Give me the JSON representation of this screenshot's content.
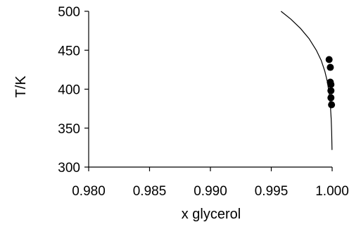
{
  "chart_data": {
    "type": "scatter",
    "title": "",
    "xlabel": "x glycerol",
    "ylabel": "T/K",
    "xlim": [
      0.98,
      1.0
    ],
    "ylim": [
      300,
      500
    ],
    "xticks": [
      "0.980",
      "0.985",
      "0.990",
      "0.995",
      "1.000"
    ],
    "yticks": [
      "300",
      "350",
      "400",
      "450",
      "500"
    ],
    "grid": false,
    "legend": "none",
    "series": [
      {
        "kind": "line",
        "color": "#000000",
        "points": [
          [
            0.9958,
            500
          ],
          [
            0.9966,
            490
          ],
          [
            0.9974,
            478
          ],
          [
            0.9981,
            465
          ],
          [
            0.9987,
            450
          ],
          [
            0.9991,
            437
          ],
          [
            0.9994,
            423
          ],
          [
            0.9996,
            410
          ],
          [
            0.99975,
            395
          ],
          [
            0.99985,
            380
          ],
          [
            0.99992,
            362
          ],
          [
            0.99996,
            345
          ],
          [
            0.99999,
            322
          ]
        ]
      },
      {
        "kind": "scatter",
        "color": "#000000",
        "points": [
          [
            0.99975,
            438
          ],
          [
            0.99985,
            428
          ],
          [
            0.99985,
            409
          ],
          [
            0.9999,
            406
          ],
          [
            0.9999,
            398
          ],
          [
            0.9999,
            389
          ],
          [
            0.99995,
            380
          ]
        ]
      }
    ]
  }
}
